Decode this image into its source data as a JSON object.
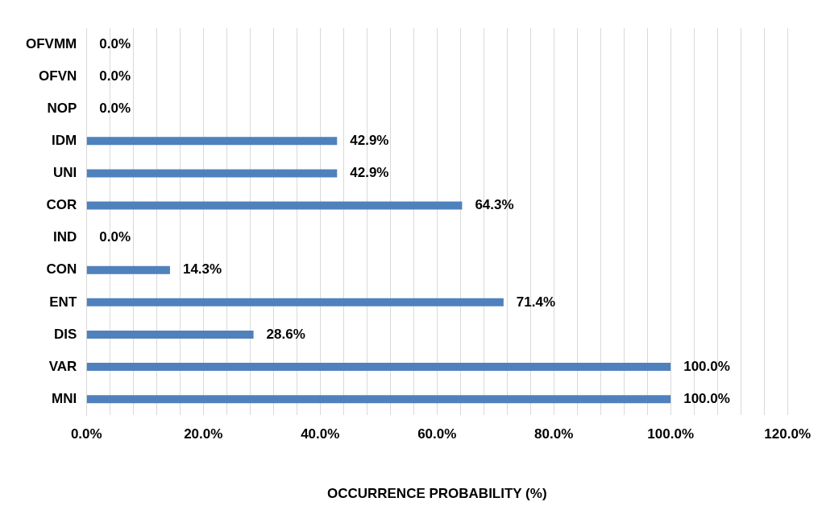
{
  "chart_data": {
    "type": "bar",
    "orientation": "horizontal",
    "xlabel": "OCCURRENCE PROBABILITY (%)",
    "categories": [
      "OFVMM",
      "OFVN",
      "NOP",
      "IDM",
      "UNI",
      "COR",
      "IND",
      "CON",
      "ENT",
      "DIS",
      "VAR",
      "MNI"
    ],
    "values": [
      0,
      0,
      0,
      42.9,
      42.9,
      64.3,
      0,
      14.3,
      71.4,
      28.6,
      100,
      100
    ],
    "value_labels": [
      "0.0%",
      "0.0%",
      "0.0%",
      "42.9%",
      "42.9%",
      "64.3%",
      "0.0%",
      "14.3%",
      "71.4%",
      "28.6%",
      "100.0%",
      "100.0%"
    ],
    "color": "#4f81bd",
    "xlim": [
      0,
      120
    ],
    "xticks": [
      {
        "value": 0,
        "label": "0.0%"
      },
      {
        "value": 4,
        "label": null
      },
      {
        "value": 8,
        "label": null
      },
      {
        "value": 12,
        "label": null
      },
      {
        "value": 16,
        "label": null
      },
      {
        "value": 20,
        "label": "20.0%"
      },
      {
        "value": 24,
        "label": null
      },
      {
        "value": 28,
        "label": null
      },
      {
        "value": 32,
        "label": null
      },
      {
        "value": 36,
        "label": null
      },
      {
        "value": 40,
        "label": "40.0%"
      },
      {
        "value": 44,
        "label": null
      },
      {
        "value": 48,
        "label": null
      },
      {
        "value": 52,
        "label": null
      },
      {
        "value": 56,
        "label": null
      },
      {
        "value": 60,
        "label": "60.0%"
      },
      {
        "value": 64,
        "label": null
      },
      {
        "value": 68,
        "label": null
      },
      {
        "value": 72,
        "label": null
      },
      {
        "value": 76,
        "label": null
      },
      {
        "value": 80,
        "label": "80.0%"
      },
      {
        "value": 84,
        "label": null
      },
      {
        "value": 88,
        "label": null
      },
      {
        "value": 92,
        "label": null
      },
      {
        "value": 96,
        "label": null
      },
      {
        "value": 100,
        "label": "100.0%"
      },
      {
        "value": 104,
        "label": null
      },
      {
        "value": 108,
        "label": null
      },
      {
        "value": 112,
        "label": null
      },
      {
        "value": 116,
        "label": null
      },
      {
        "value": 120,
        "label": "120.0%"
      }
    ],
    "grid": "x",
    "legend": false
  }
}
